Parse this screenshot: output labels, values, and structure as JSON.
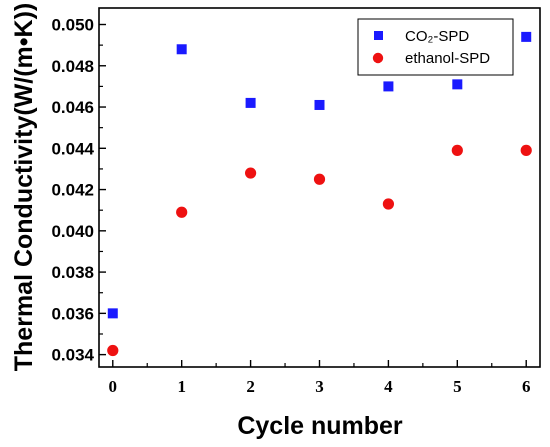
{
  "chart_data": {
    "type": "scatter",
    "title": "",
    "xlabel": "Cycle number",
    "ylabel": "Thermal Conductivity(W/(m•K))",
    "xlim": [
      -0.2,
      6.2
    ],
    "ylim": [
      0.0334,
      0.0508
    ],
    "x_ticks": [
      "0",
      "1",
      "2",
      "3",
      "4",
      "5",
      "6"
    ],
    "y_ticks": [
      "0.034",
      "0.036",
      "0.038",
      "0.040",
      "0.042",
      "0.044",
      "0.046",
      "0.048",
      "0.050"
    ],
    "grid": false,
    "legend_position": "top-right",
    "series": [
      {
        "name": "CO₂-SPD",
        "marker": "square",
        "color": "#1a1aff",
        "x": [
          0,
          1,
          2,
          3,
          4,
          5,
          6
        ],
        "y": [
          0.036,
          0.0488,
          0.0462,
          0.0461,
          0.047,
          0.0471,
          0.0494
        ]
      },
      {
        "name": "ethanol-SPD",
        "marker": "circle",
        "color": "#ee1111",
        "x": [
          0,
          1,
          2,
          3,
          4,
          5,
          6
        ],
        "y": [
          0.0342,
          0.0409,
          0.0428,
          0.0425,
          0.0413,
          0.0439,
          0.0439
        ]
      }
    ]
  }
}
